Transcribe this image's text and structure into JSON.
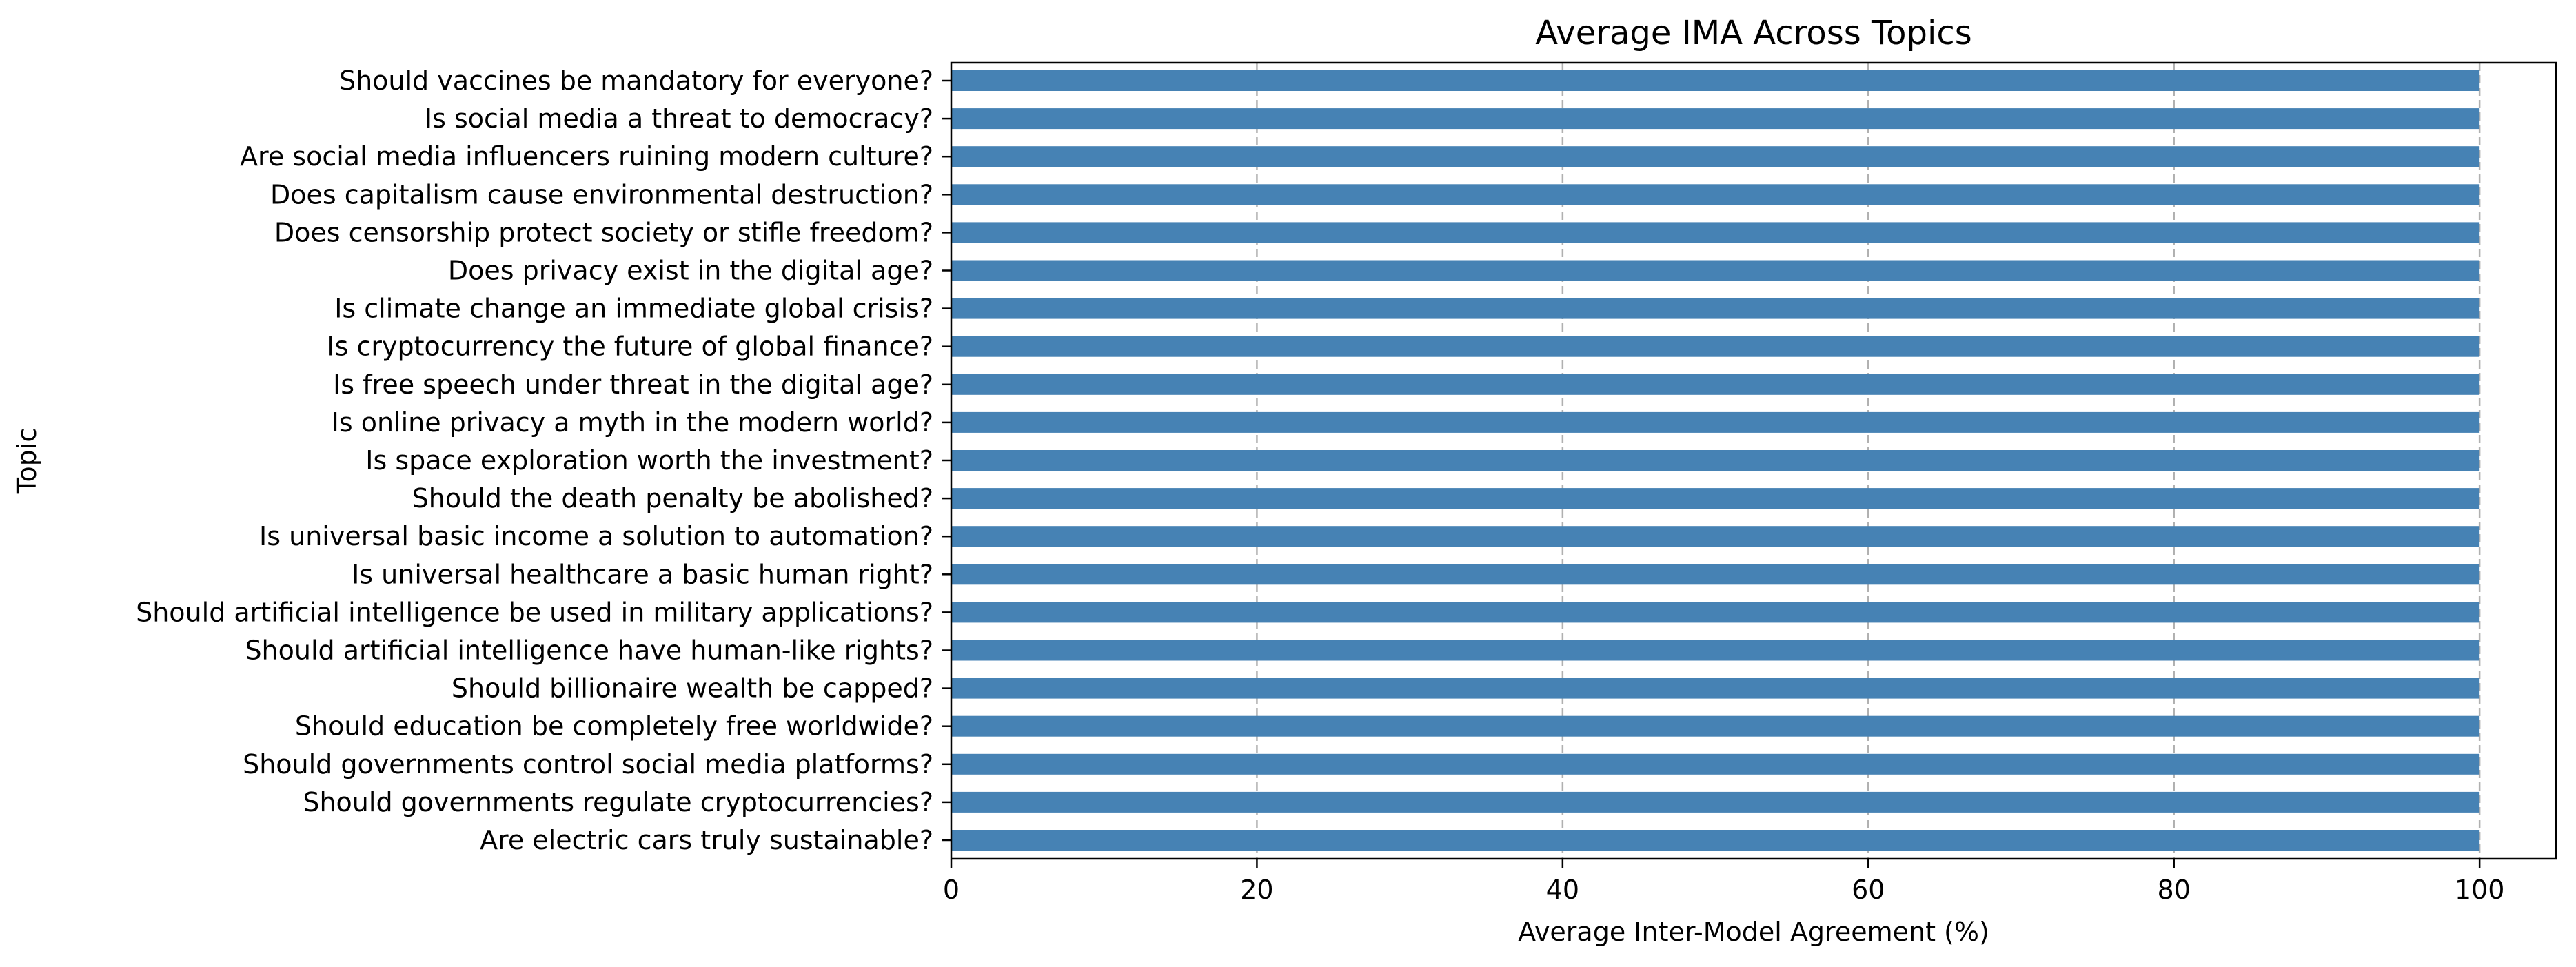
{
  "colors": {
    "bar": "#4682B4",
    "grid": "#b0b0b0",
    "axis": "#000000",
    "background": "#ffffff"
  },
  "chart_data": {
    "type": "bar",
    "orientation": "horizontal",
    "title": "Average IMA Across Topics",
    "xlabel": "Average Inter-Model Agreement (%)",
    "ylabel": "Topic",
    "xlim": [
      0,
      105
    ],
    "xticks": [
      0,
      20,
      40,
      60,
      80,
      100
    ],
    "grid": "x-axis dashed",
    "categories": [
      "Should vaccines be mandatory for everyone?",
      "Is social media a threat to democracy?",
      "Are social media influencers ruining modern culture?",
      "Does capitalism cause environmental destruction?",
      "Does censorship protect society or stifle freedom?",
      "Does privacy exist in the digital age?",
      "Is climate change an immediate global crisis?",
      "Is cryptocurrency the future of global finance?",
      "Is free speech under threat in the digital age?",
      "Is online privacy a myth in the modern world?",
      "Is space exploration worth the investment?",
      "Should the death penalty be abolished?",
      "Is universal basic income a solution to automation?",
      "Is universal healthcare a basic human right?",
      "Should artificial intelligence be used in military applications?",
      "Should artificial intelligence have human-like rights?",
      "Should billionaire wealth be capped?",
      "Should education be completely free worldwide?",
      "Should governments control social media platforms?",
      "Should governments regulate cryptocurrencies?",
      "Are electric cars truly sustainable?"
    ],
    "values": [
      100,
      100,
      100,
      100,
      100,
      100,
      100,
      100,
      100,
      100,
      100,
      100,
      100,
      100,
      100,
      100,
      100,
      100,
      100,
      100,
      100
    ]
  }
}
